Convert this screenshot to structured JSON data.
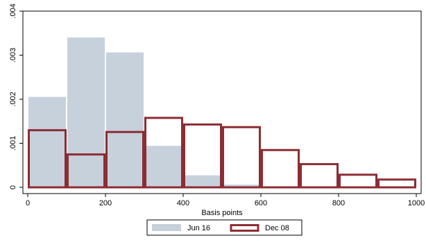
{
  "chart_data": {
    "type": "bar",
    "subtype": "histogram",
    "xlabel": "Basis points",
    "ylabel": "",
    "xlim": [
      0,
      1000
    ],
    "ylim": [
      0,
      0.004
    ],
    "x_ticks": [
      0,
      200,
      400,
      600,
      800,
      1000
    ],
    "x_tick_labels": [
      "0",
      "200",
      "400",
      "600",
      "800",
      "1000"
    ],
    "y_ticks": [
      0,
      0.001,
      0.002,
      0.003,
      0.004
    ],
    "y_tick_labels": [
      "0",
      ".001",
      ".002",
      ".003",
      ".004"
    ],
    "grid": false,
    "legend_position": "bottom",
    "bins": [
      [
        0,
        100
      ],
      [
        100,
        200
      ],
      [
        200,
        300
      ],
      [
        300,
        400
      ],
      [
        400,
        500
      ],
      [
        500,
        600
      ],
      [
        600,
        700
      ],
      [
        700,
        800
      ],
      [
        800,
        900
      ],
      [
        900,
        1000
      ]
    ],
    "series": [
      {
        "name": "Jun 16",
        "style": "filled",
        "color": "#c6d1dc",
        "values": [
          0.00206,
          0.00341,
          0.00307,
          0.00095,
          0.00028,
          7e-05,
          0,
          0,
          0,
          0
        ]
      },
      {
        "name": "Dec 08",
        "style": "outline",
        "color": "#8c2d33",
        "values": [
          0.00132,
          0.00077,
          0.00128,
          0.0016,
          0.00145,
          0.00139,
          0.00087,
          0.00055,
          0.00031,
          0.0002
        ]
      }
    ]
  }
}
